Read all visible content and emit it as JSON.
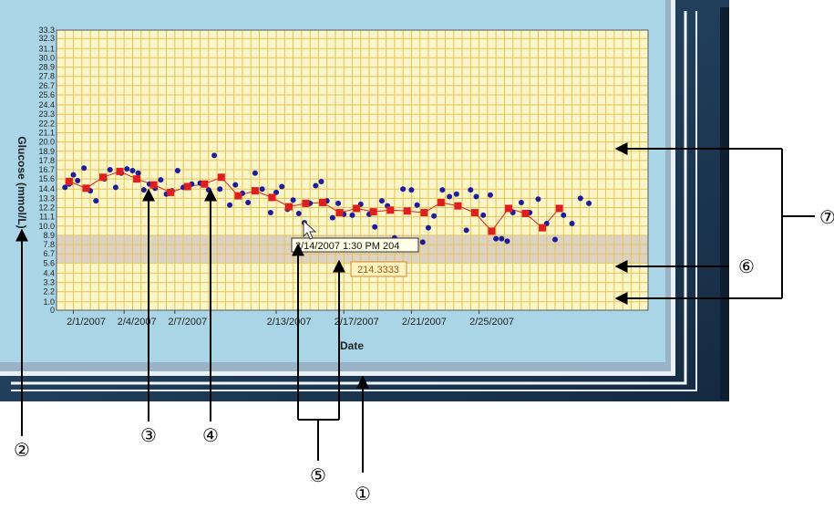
{
  "chart_data": {
    "type": "line",
    "title": "",
    "xlabel": "Date",
    "ylabel": "Glucose (mmol/L)",
    "ylim": [
      0,
      33.3
    ],
    "xlim": [
      "2007-01-31",
      "2007-03-07"
    ],
    "y_ticks": [
      "0",
      "1.0",
      "2.2",
      "3.3",
      "4.4",
      "5.6",
      "6.7",
      "7.8",
      "8.9",
      "10.0",
      "11.1",
      "12.2",
      "13.3",
      "14.4",
      "15.6",
      "16.7",
      "17.8",
      "18.9",
      "20.0",
      "21.1",
      "22.2",
      "23.3",
      "24.4",
      "25.6",
      "26.7",
      "27.8",
      "28.9",
      "30.0",
      "31.1",
      "32.3",
      "33.3"
    ],
    "x_ticks": [
      {
        "date": "2007-02-01",
        "label": "2/1/2007"
      },
      {
        "date": "2007-02-04",
        "label": "2/4/2007"
      },
      {
        "date": "2007-02-07",
        "label": "2/7/2007"
      },
      {
        "date": "2007-02-13",
        "label": "2/13/2007"
      },
      {
        "date": "2007-02-17",
        "label": "2/17/2007"
      },
      {
        "date": "2007-02-21",
        "label": "2/21/2007"
      },
      {
        "date": "2007-02-25",
        "label": "2/25/2007"
      }
    ],
    "target_range": [
      5.6,
      8.9
    ],
    "grid": true,
    "series": [
      {
        "color": "#1c1c9c",
        "marker": "circle",
        "points": [
          [
            "2007-01-31T12:00",
            14.6
          ],
          [
            "2007-01-31T18:00",
            15.0
          ],
          [
            "2007-02-01T00:00",
            16.1
          ],
          [
            "2007-02-01T06:00",
            15.4
          ],
          [
            "2007-02-01T15:00",
            16.9
          ],
          [
            "2007-02-02T00:00",
            14.2
          ],
          [
            "2007-02-02T08:00",
            13.0
          ],
          [
            "2007-02-02T20:00",
            15.6
          ],
          [
            "2007-02-03T04:00",
            16.7
          ],
          [
            "2007-02-03T12:00",
            14.6
          ],
          [
            "2007-02-03T20:00",
            16.3
          ],
          [
            "2007-02-04T04:00",
            16.8
          ],
          [
            "2007-02-04T12:00",
            16.6
          ],
          [
            "2007-02-04T20:00",
            16.3
          ],
          [
            "2007-02-05T04:00",
            14.3
          ],
          [
            "2007-02-05T12:00",
            15.0
          ],
          [
            "2007-02-05T20:00",
            14.5
          ],
          [
            "2007-02-06T04:00",
            15.5
          ],
          [
            "2007-02-06T12:00",
            13.8
          ],
          [
            "2007-02-06T20:00",
            14.2
          ],
          [
            "2007-02-07T04:00",
            16.6
          ],
          [
            "2007-02-07T12:00",
            14.6
          ],
          [
            "2007-02-08T00:00",
            15.0
          ],
          [
            "2007-02-08T12:00",
            15.1
          ],
          [
            "2007-02-09T00:00",
            14.3
          ],
          [
            "2007-02-09T08:00",
            18.4
          ],
          [
            "2007-02-09T16:00",
            14.4
          ],
          [
            "2007-02-10T06:00",
            12.5
          ],
          [
            "2007-02-10T14:00",
            14.9
          ],
          [
            "2007-02-11T00:00",
            13.9
          ],
          [
            "2007-02-11T08:00",
            12.8
          ],
          [
            "2007-02-11T18:00",
            16.3
          ],
          [
            "2007-02-12T04:00",
            14.4
          ],
          [
            "2007-02-12T16:00",
            11.6
          ],
          [
            "2007-02-13T00:00",
            14.0
          ],
          [
            "2007-02-13T08:00",
            14.7
          ],
          [
            "2007-02-13T16:00",
            12.0
          ],
          [
            "2007-02-14T00:00",
            13.1
          ],
          [
            "2007-02-14T08:00",
            11.5
          ],
          [
            "2007-02-14T16:00",
            10.4
          ],
          [
            "2007-02-15T00:00",
            12.7
          ],
          [
            "2007-02-15T08:00",
            14.8
          ],
          [
            "2007-02-15T16:00",
            15.3
          ],
          [
            "2007-02-16T00:00",
            13.0
          ],
          [
            "2007-02-16T08:00",
            11.0
          ],
          [
            "2007-02-16T16:00",
            12.7
          ],
          [
            "2007-02-17T00:00",
            11.4
          ],
          [
            "2007-02-17T12:00",
            11.3
          ],
          [
            "2007-02-18T00:00",
            12.6
          ],
          [
            "2007-02-18T12:00",
            11.4
          ],
          [
            "2007-02-18T20:00",
            9.9
          ],
          [
            "2007-02-19T06:00",
            13.0
          ],
          [
            "2007-02-19T14:00",
            12.4
          ],
          [
            "2007-02-20T00:00",
            8.6
          ],
          [
            "2007-02-20T12:00",
            14.4
          ],
          [
            "2007-02-21T00:00",
            14.3
          ],
          [
            "2007-02-21T08:00",
            12.5
          ],
          [
            "2007-02-21T16:00",
            8.1
          ],
          [
            "2007-02-22T00:00",
            9.8
          ],
          [
            "2007-02-22T08:00",
            11.2
          ],
          [
            "2007-02-22T20:00",
            14.3
          ],
          [
            "2007-02-23T06:00",
            13.5
          ],
          [
            "2007-02-23T16:00",
            13.8
          ],
          [
            "2007-02-24T06:00",
            9.5
          ],
          [
            "2007-02-24T12:00",
            14.3
          ],
          [
            "2007-02-24T20:00",
            13.5
          ],
          [
            "2007-02-25T06:00",
            11.3
          ],
          [
            "2007-02-25T16:00",
            13.7
          ],
          [
            "2007-02-26T00:00",
            8.5
          ],
          [
            "2007-02-26T08:00",
            8.5
          ],
          [
            "2007-02-26T16:00",
            8.2
          ],
          [
            "2007-02-27T00:00",
            11.6
          ],
          [
            "2007-02-27T12:00",
            12.8
          ],
          [
            "2007-02-28T00:00",
            11.6
          ],
          [
            "2007-02-28T12:00",
            13.2
          ],
          [
            "2007-03-01T00:00",
            10.3
          ],
          [
            "2007-03-01T12:00",
            8.4
          ],
          [
            "2007-03-02T00:00",
            11.3
          ],
          [
            "2007-03-02T12:00",
            10.3
          ],
          [
            "2007-03-03T00:00",
            13.3
          ],
          [
            "2007-03-03T12:00",
            12.7
          ]
        ]
      },
      {
        "color": "#dd1f1f",
        "marker": "square",
        "line": true,
        "points": [
          [
            "2007-01-31T18:00",
            15.3
          ],
          [
            "2007-02-01T18:00",
            14.5
          ],
          [
            "2007-02-02T18:00",
            15.8
          ],
          [
            "2007-02-03T18:00",
            16.5
          ],
          [
            "2007-02-04T18:00",
            15.6
          ],
          [
            "2007-02-05T18:00",
            14.9
          ],
          [
            "2007-02-06T18:00",
            14.0
          ],
          [
            "2007-02-07T18:00",
            14.7
          ],
          [
            "2007-02-08T18:00",
            15.0
          ],
          [
            "2007-02-09T18:00",
            15.8
          ],
          [
            "2007-02-10T18:00",
            13.6
          ],
          [
            "2007-02-11T18:00",
            14.2
          ],
          [
            "2007-02-12T18:00",
            13.4
          ],
          [
            "2007-02-13T18:00",
            12.3
          ],
          [
            "2007-02-14T18:00",
            12.7
          ],
          [
            "2007-02-15T18:00",
            12.8
          ],
          [
            "2007-02-16T18:00",
            11.6
          ],
          [
            "2007-02-17T18:00",
            12.1
          ],
          [
            "2007-02-18T18:00",
            11.7
          ],
          [
            "2007-02-19T18:00",
            11.9
          ],
          [
            "2007-02-20T18:00",
            11.8
          ],
          [
            "2007-02-21T18:00",
            11.6
          ],
          [
            "2007-02-22T18:00",
            12.8
          ],
          [
            "2007-02-23T18:00",
            12.4
          ],
          [
            "2007-02-24T18:00",
            11.6
          ],
          [
            "2007-02-25T18:00",
            9.4
          ],
          [
            "2007-02-26T18:00",
            12.1
          ],
          [
            "2007-02-27T18:00",
            11.5
          ],
          [
            "2007-02-28T18:00",
            9.8
          ],
          [
            "2007-03-01T18:00",
            12.1
          ]
        ]
      }
    ],
    "tooltip": {
      "text": "2/14/2007 1:30 PM 204"
    },
    "value_label": {
      "text": "214.3333"
    }
  },
  "callouts": [
    {
      "id": "c1",
      "label": "①"
    },
    {
      "id": "c2",
      "label": "②"
    },
    {
      "id": "c3",
      "label": "③"
    },
    {
      "id": "c4",
      "label": "④"
    },
    {
      "id": "c5",
      "label": "⑤"
    },
    {
      "id": "c6",
      "label": "⑥"
    },
    {
      "id": "c7",
      "label": "⑦"
    }
  ],
  "colors": {
    "plot_bg": "#fbf6c8",
    "grid": "#e6c35a",
    "target_band": "#d8cfc4",
    "panel_bg": "#a9d5e6",
    "frame_dark": "#213c58",
    "frame_light": "#eef4f8"
  }
}
